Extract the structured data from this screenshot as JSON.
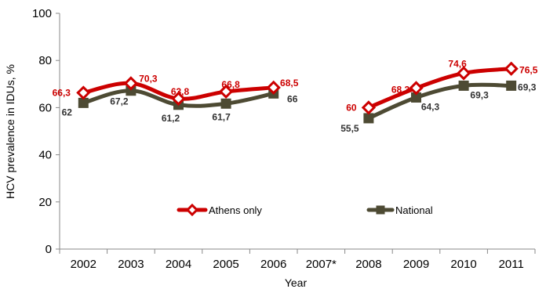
{
  "chart_data": {
    "type": "line",
    "title": "",
    "xlabel": "Year",
    "ylabel": "HCV prevalence in IDUs, %",
    "ylim": [
      0,
      100
    ],
    "yticks": [
      "0",
      "20",
      "40",
      "60",
      "80",
      "100"
    ],
    "categories": [
      "2002",
      "2003",
      "2004",
      "2005",
      "2006",
      "2007*",
      "2008",
      "2009",
      "2010",
      "2011"
    ],
    "grid": false,
    "legend_position": "bottom-center",
    "series": [
      {
        "name": "Athens only",
        "color": "#cc0000",
        "marker": "diamond",
        "values": [
          66.3,
          70.3,
          63.8,
          66.8,
          68.5,
          null,
          60,
          68.3,
          74.6,
          76.5
        ],
        "labels": [
          "66,3",
          "70,3",
          "63,8",
          "66,8",
          "68,5",
          "",
          "60",
          "68,3",
          "74,6",
          "76,5"
        ]
      },
      {
        "name": "National",
        "color": "#4d4a33",
        "marker": "square",
        "values": [
          62,
          67.2,
          61.2,
          61.7,
          66,
          null,
          55.5,
          64.3,
          69.3,
          69.3
        ],
        "labels": [
          "62",
          "67,2",
          "61,2",
          "61,7",
          "66",
          "",
          "55,5",
          "64,3",
          "69,3",
          "69,3"
        ]
      }
    ]
  }
}
